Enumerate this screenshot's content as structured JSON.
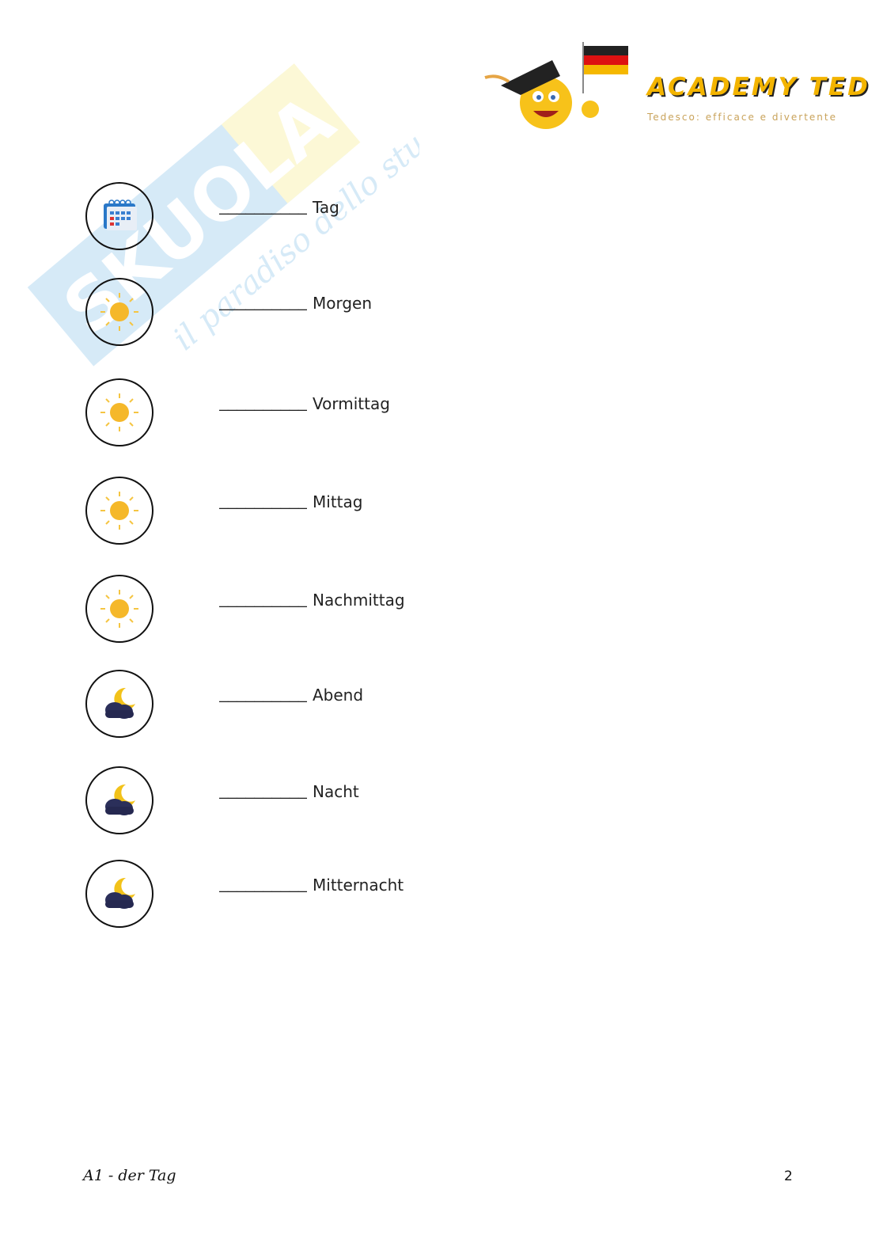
{
  "watermark": {
    "brand": "Skuola.net",
    "slogan": "il paradiso dello studente"
  },
  "header": {
    "logo_title": "ACADEMY TED",
    "logo_tagline": "Tedesco: efficace e divertente",
    "colors": {
      "brand": "#f3b400",
      "tagline": "#c9a35b"
    }
  },
  "exercise": {
    "blank": "__________",
    "items": [
      {
        "icon": "calendar-icon",
        "word": "Tag"
      },
      {
        "icon": "sun-icon",
        "word": "Morgen"
      },
      {
        "icon": "sun-icon",
        "word": "Vormittag"
      },
      {
        "icon": "sun-icon",
        "word": "Mittag"
      },
      {
        "icon": "sun-icon",
        "word": "Nachmittag"
      },
      {
        "icon": "moon-cloud-icon",
        "word": "Abend"
      },
      {
        "icon": "moon-cloud-icon",
        "word": "Nacht"
      },
      {
        "icon": "moon-cloud-icon",
        "word": "Mitternacht"
      }
    ]
  },
  "footer": {
    "left": "A1 - der Tag",
    "page_number": "2"
  }
}
